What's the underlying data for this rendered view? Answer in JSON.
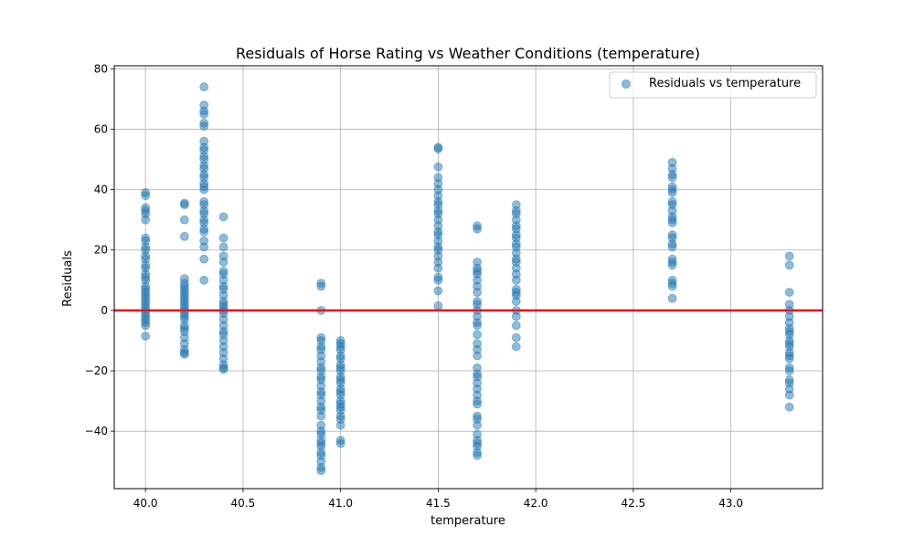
{
  "chart_data": {
    "type": "scatter",
    "title": "Residuals of Horse Rating vs Weather Conditions (temperature)",
    "xlabel": "temperature",
    "ylabel": "Residuals",
    "xlim": [
      39.84,
      43.47
    ],
    "ylim": [
      -59,
      81
    ],
    "xticks": [
      40.0,
      40.5,
      41.0,
      41.5,
      42.0,
      42.5,
      43.0
    ],
    "xtick_labels": [
      "40.0",
      "40.5",
      "41.0",
      "41.5",
      "42.0",
      "42.5",
      "43.0"
    ],
    "yticks": [
      -40,
      -20,
      0,
      20,
      40,
      60,
      80
    ],
    "ytick_labels": [
      "−40",
      "−20",
      "0",
      "20",
      "40",
      "60",
      "80"
    ],
    "grid": true,
    "legend_position": "top-right",
    "reference_line": {
      "y": 0,
      "color": "#e8141b"
    },
    "series": [
      {
        "name": "Residuals vs temperature",
        "color": "#1f77b4",
        "alpha": 0.5,
        "points": [
          [
            40.0,
            39
          ],
          [
            40.0,
            38
          ],
          [
            40.0,
            34
          ],
          [
            40.0,
            33
          ],
          [
            40.0,
            32
          ],
          [
            40.0,
            30
          ],
          [
            40.0,
            24
          ],
          [
            40.0,
            23
          ],
          [
            40.0,
            21
          ],
          [
            40.0,
            20
          ],
          [
            40.0,
            18
          ],
          [
            40.0,
            17
          ],
          [
            40.0,
            15
          ],
          [
            40.0,
            14
          ],
          [
            40.0,
            12
          ],
          [
            40.0,
            11
          ],
          [
            40.0,
            10
          ],
          [
            40.0,
            8
          ],
          [
            40.0,
            7
          ],
          [
            40.0,
            6
          ],
          [
            40.0,
            5
          ],
          [
            40.0,
            4
          ],
          [
            40.0,
            3
          ],
          [
            40.0,
            2
          ],
          [
            40.0,
            1
          ],
          [
            40.0,
            0
          ],
          [
            40.0,
            -1
          ],
          [
            40.0,
            -2
          ],
          [
            40.0,
            -3
          ],
          [
            40.0,
            -4
          ],
          [
            40.0,
            -5
          ],
          [
            40.0,
            -8.5
          ],
          [
            40.2,
            35.5
          ],
          [
            40.2,
            35
          ],
          [
            40.2,
            30
          ],
          [
            40.2,
            24.5
          ],
          [
            40.2,
            10.5
          ],
          [
            40.2,
            9
          ],
          [
            40.2,
            8
          ],
          [
            40.2,
            7
          ],
          [
            40.2,
            6
          ],
          [
            40.2,
            5
          ],
          [
            40.2,
            4
          ],
          [
            40.2,
            3
          ],
          [
            40.2,
            2
          ],
          [
            40.2,
            1
          ],
          [
            40.2,
            0
          ],
          [
            40.2,
            -1
          ],
          [
            40.2,
            -2
          ],
          [
            40.2,
            -3
          ],
          [
            40.2,
            -5
          ],
          [
            40.2,
            -6
          ],
          [
            40.2,
            -7
          ],
          [
            40.2,
            -9
          ],
          [
            40.2,
            -11
          ],
          [
            40.2,
            -13
          ],
          [
            40.2,
            -14
          ],
          [
            40.2,
            -14.5
          ],
          [
            40.3,
            74
          ],
          [
            40.3,
            68
          ],
          [
            40.3,
            66
          ],
          [
            40.3,
            65
          ],
          [
            40.3,
            62
          ],
          [
            40.3,
            61
          ],
          [
            40.3,
            56
          ],
          [
            40.3,
            54
          ],
          [
            40.3,
            53
          ],
          [
            40.3,
            51
          ],
          [
            40.3,
            50
          ],
          [
            40.3,
            48
          ],
          [
            40.3,
            47
          ],
          [
            40.3,
            45
          ],
          [
            40.3,
            44
          ],
          [
            40.3,
            42
          ],
          [
            40.3,
            41
          ],
          [
            40.3,
            40
          ],
          [
            40.3,
            36
          ],
          [
            40.3,
            35
          ],
          [
            40.3,
            33
          ],
          [
            40.3,
            32
          ],
          [
            40.3,
            30
          ],
          [
            40.3,
            29
          ],
          [
            40.3,
            27
          ],
          [
            40.3,
            26
          ],
          [
            40.3,
            23
          ],
          [
            40.3,
            21
          ],
          [
            40.3,
            17
          ],
          [
            40.3,
            10
          ],
          [
            40.4,
            31
          ],
          [
            40.4,
            24
          ],
          [
            40.4,
            21
          ],
          [
            40.4,
            18
          ],
          [
            40.4,
            16
          ],
          [
            40.4,
            13
          ],
          [
            40.4,
            12
          ],
          [
            40.4,
            10
          ],
          [
            40.4,
            8
          ],
          [
            40.4,
            7
          ],
          [
            40.4,
            5
          ],
          [
            40.4,
            3
          ],
          [
            40.4,
            2
          ],
          [
            40.4,
            1
          ],
          [
            40.4,
            0
          ],
          [
            40.4,
            -1
          ],
          [
            40.4,
            -3
          ],
          [
            40.4,
            -5
          ],
          [
            40.4,
            -7
          ],
          [
            40.4,
            -8
          ],
          [
            40.4,
            -10
          ],
          [
            40.4,
            -12
          ],
          [
            40.4,
            -14
          ],
          [
            40.4,
            -16
          ],
          [
            40.4,
            -18
          ],
          [
            40.4,
            -19.5
          ],
          [
            40.4,
            -19
          ],
          [
            40.9,
            9
          ],
          [
            40.9,
            8
          ],
          [
            40.9,
            0
          ],
          [
            40.9,
            -9
          ],
          [
            40.9,
            -10
          ],
          [
            40.9,
            -12
          ],
          [
            40.9,
            -13
          ],
          [
            40.9,
            -15
          ],
          [
            40.9,
            -17
          ],
          [
            40.9,
            -19
          ],
          [
            40.9,
            -20
          ],
          [
            40.9,
            -22
          ],
          [
            40.9,
            -23
          ],
          [
            40.9,
            -25
          ],
          [
            40.9,
            -27
          ],
          [
            40.9,
            -28
          ],
          [
            40.9,
            -30
          ],
          [
            40.9,
            -32
          ],
          [
            40.9,
            -33
          ],
          [
            40.9,
            -35
          ],
          [
            40.9,
            -38
          ],
          [
            40.9,
            -40
          ],
          [
            40.9,
            -41
          ],
          [
            40.9,
            -43
          ],
          [
            40.9,
            -44
          ],
          [
            40.9,
            -45
          ],
          [
            40.9,
            -47
          ],
          [
            40.9,
            -48
          ],
          [
            40.9,
            -50
          ],
          [
            40.9,
            -52
          ],
          [
            40.9,
            -53
          ],
          [
            41.0,
            -10
          ],
          [
            41.0,
            -11
          ],
          [
            41.0,
            -12
          ],
          [
            41.0,
            -13
          ],
          [
            41.0,
            -15
          ],
          [
            41.0,
            -16
          ],
          [
            41.0,
            -18
          ],
          [
            41.0,
            -19
          ],
          [
            41.0,
            -20
          ],
          [
            41.0,
            -22
          ],
          [
            41.0,
            -23
          ],
          [
            41.0,
            -24
          ],
          [
            41.0,
            -26
          ],
          [
            41.0,
            -27
          ],
          [
            41.0,
            -28
          ],
          [
            41.0,
            -30
          ],
          [
            41.0,
            -31
          ],
          [
            41.0,
            -32
          ],
          [
            41.0,
            -33
          ],
          [
            41.0,
            -35
          ],
          [
            41.0,
            -36
          ],
          [
            41.0,
            -38
          ],
          [
            41.0,
            -43
          ],
          [
            41.0,
            -44
          ],
          [
            41.5,
            54
          ],
          [
            41.5,
            53.5
          ],
          [
            41.5,
            47.5
          ],
          [
            41.5,
            44
          ],
          [
            41.5,
            42
          ],
          [
            41.5,
            40
          ],
          [
            41.5,
            38
          ],
          [
            41.5,
            36
          ],
          [
            41.5,
            35
          ],
          [
            41.5,
            33
          ],
          [
            41.5,
            32
          ],
          [
            41.5,
            30
          ],
          [
            41.5,
            28
          ],
          [
            41.5,
            26
          ],
          [
            41.5,
            25
          ],
          [
            41.5,
            23
          ],
          [
            41.5,
            21
          ],
          [
            41.5,
            20
          ],
          [
            41.5,
            18
          ],
          [
            41.5,
            16
          ],
          [
            41.5,
            14
          ],
          [
            41.5,
            11
          ],
          [
            41.5,
            10
          ],
          [
            41.5,
            6.5
          ],
          [
            41.5,
            1.5
          ],
          [
            41.7,
            28
          ],
          [
            41.7,
            27
          ],
          [
            41.7,
            16
          ],
          [
            41.7,
            14
          ],
          [
            41.7,
            13
          ],
          [
            41.7,
            12
          ],
          [
            41.7,
            10
          ],
          [
            41.7,
            8
          ],
          [
            41.7,
            6
          ],
          [
            41.7,
            3
          ],
          [
            41.7,
            2
          ],
          [
            41.7,
            0
          ],
          [
            41.7,
            -2
          ],
          [
            41.7,
            -4
          ],
          [
            41.7,
            -5
          ],
          [
            41.7,
            -8
          ],
          [
            41.7,
            -11
          ],
          [
            41.7,
            -13
          ],
          [
            41.7,
            -15
          ],
          [
            41.7,
            -19
          ],
          [
            41.7,
            -21
          ],
          [
            41.7,
            -22
          ],
          [
            41.7,
            -24
          ],
          [
            41.7,
            -26
          ],
          [
            41.7,
            -28
          ],
          [
            41.7,
            -30
          ],
          [
            41.7,
            -31
          ],
          [
            41.7,
            -35
          ],
          [
            41.7,
            -36
          ],
          [
            41.7,
            -38
          ],
          [
            41.7,
            -41
          ],
          [
            41.7,
            -43
          ],
          [
            41.7,
            -44
          ],
          [
            41.7,
            -45
          ],
          [
            41.7,
            -47
          ],
          [
            41.7,
            -48
          ],
          [
            41.9,
            35
          ],
          [
            41.9,
            33
          ],
          [
            41.9,
            32
          ],
          [
            41.9,
            30
          ],
          [
            41.9,
            28
          ],
          [
            41.9,
            27
          ],
          [
            41.9,
            25
          ],
          [
            41.9,
            24
          ],
          [
            41.9,
            22
          ],
          [
            41.9,
            21
          ],
          [
            41.9,
            19
          ],
          [
            41.9,
            17
          ],
          [
            41.9,
            16
          ],
          [
            41.9,
            14
          ],
          [
            41.9,
            12
          ],
          [
            41.9,
            10
          ],
          [
            41.9,
            7
          ],
          [
            41.9,
            6
          ],
          [
            41.9,
            5
          ],
          [
            41.9,
            3
          ],
          [
            41.9,
            0
          ],
          [
            41.9,
            -2
          ],
          [
            41.9,
            -5
          ],
          [
            41.9,
            -9
          ],
          [
            41.9,
            -12
          ],
          [
            42.7,
            49
          ],
          [
            42.7,
            47
          ],
          [
            42.7,
            45
          ],
          [
            42.7,
            44
          ],
          [
            42.7,
            41
          ],
          [
            42.7,
            40
          ],
          [
            42.7,
            39
          ],
          [
            42.7,
            36
          ],
          [
            42.7,
            35
          ],
          [
            42.7,
            33
          ],
          [
            42.7,
            31
          ],
          [
            42.7,
            30
          ],
          [
            42.7,
            29
          ],
          [
            42.7,
            25
          ],
          [
            42.7,
            24
          ],
          [
            42.7,
            22
          ],
          [
            42.7,
            21
          ],
          [
            42.7,
            17
          ],
          [
            42.7,
            16
          ],
          [
            42.7,
            15
          ],
          [
            42.7,
            10
          ],
          [
            42.7,
            9
          ],
          [
            42.7,
            8
          ],
          [
            42.7,
            4
          ],
          [
            43.3,
            18
          ],
          [
            43.3,
            15
          ],
          [
            43.3,
            6
          ],
          [
            43.3,
            2
          ],
          [
            43.3,
            0
          ],
          [
            43.3,
            -2
          ],
          [
            43.3,
            -4
          ],
          [
            43.3,
            -6
          ],
          [
            43.3,
            -7
          ],
          [
            43.3,
            -8
          ],
          [
            43.3,
            -10
          ],
          [
            43.3,
            -11
          ],
          [
            43.3,
            -12
          ],
          [
            43.3,
            -14
          ],
          [
            43.3,
            -15
          ],
          [
            43.3,
            -16
          ],
          [
            43.3,
            -19
          ],
          [
            43.3,
            -20
          ],
          [
            43.3,
            -23
          ],
          [
            43.3,
            -24
          ],
          [
            43.3,
            -26
          ],
          [
            43.3,
            -28
          ],
          [
            43.3,
            -32
          ]
        ]
      }
    ]
  }
}
